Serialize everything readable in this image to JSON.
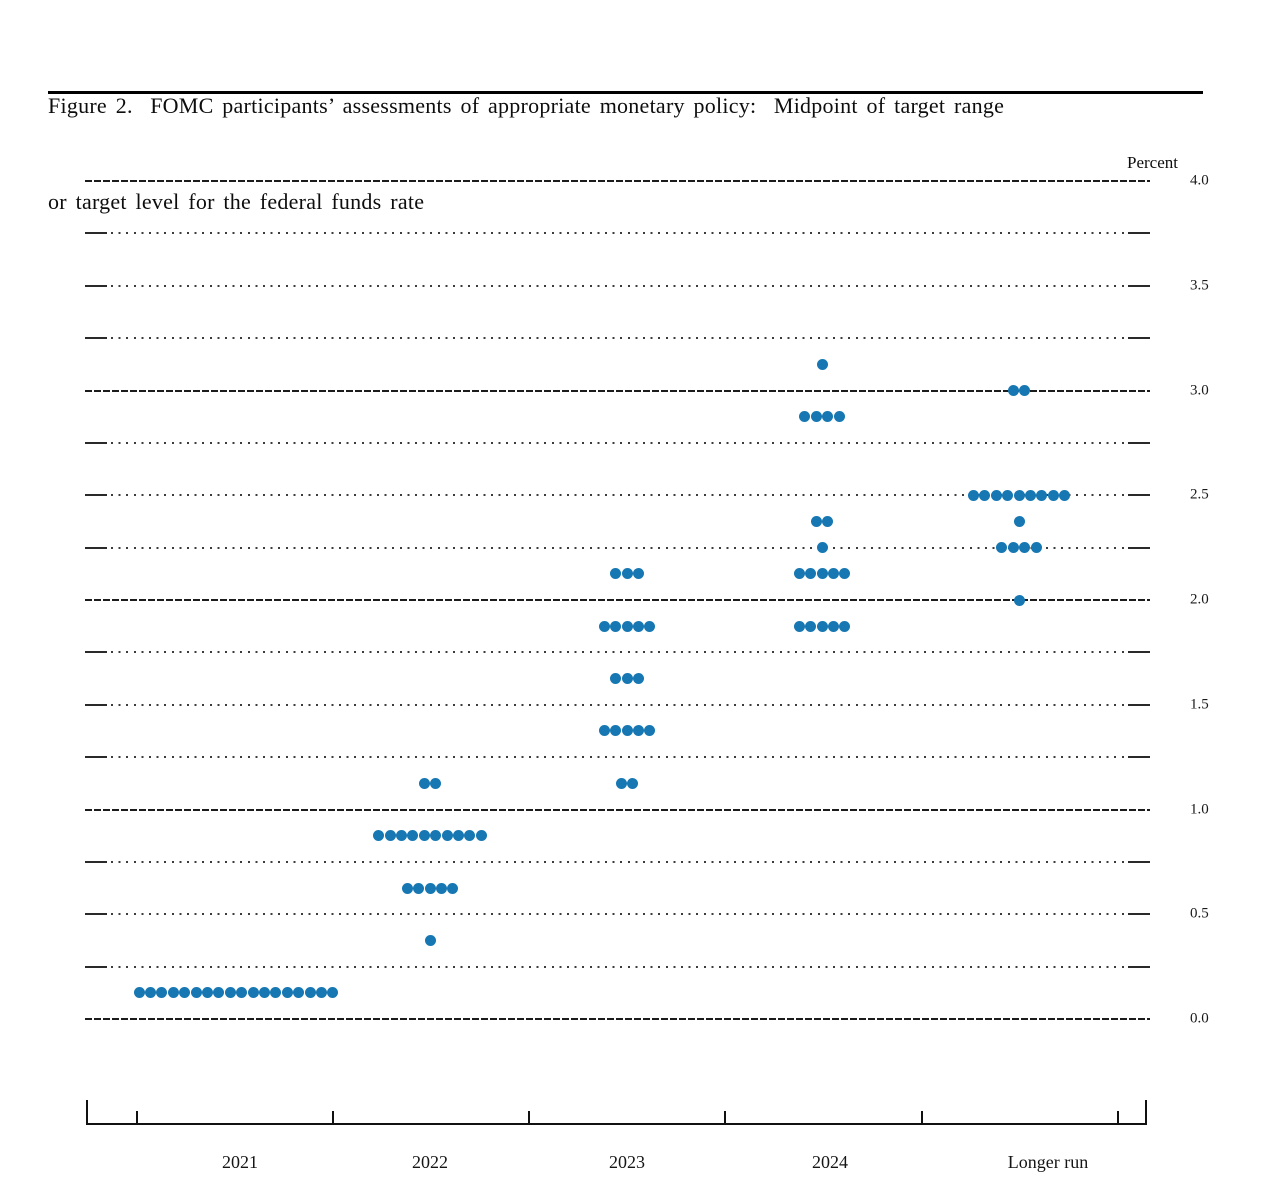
{
  "figure": {
    "title_line1": "Figure 2.  FOMC participants’ assessments of appropriate monetary policy:  Midpoint of target range",
    "title_line2": "or target level for the federal funds rate"
  },
  "chart_data": {
    "type": "scatter",
    "subtype": "fomc-dot-plot",
    "title": "FOMC participants’ assessments of appropriate monetary policy: Midpoint of target range or target level for the federal funds rate",
    "ylabel": "Percent",
    "ylim": [
      0.0,
      4.0
    ],
    "grid": "on",
    "grid_interval": 0.25,
    "solid_gridlines": [
      0.0,
      1.0,
      2.0,
      3.0,
      4.0
    ],
    "legend_position": "none",
    "y_ticks": [
      {
        "value": 4.0,
        "label": "4.0"
      },
      {
        "value": 3.5,
        "label": "3.5"
      },
      {
        "value": 3.0,
        "label": "3.0"
      },
      {
        "value": 2.5,
        "label": "2.5"
      },
      {
        "value": 2.0,
        "label": "2.0"
      },
      {
        "value": 1.5,
        "label": "1.5"
      },
      {
        "value": 1.0,
        "label": "1.0"
      },
      {
        "value": 0.5,
        "label": "0.5"
      },
      {
        "value": 0.0,
        "label": "0.0"
      }
    ],
    "categories": [
      "2021",
      "2022",
      "2023",
      "2024",
      "Longer run"
    ],
    "series": [
      {
        "category": "2021",
        "dots": [
          {
            "rate": 0.125,
            "count": 18
          }
        ]
      },
      {
        "category": "2022",
        "dots": [
          {
            "rate": 1.125,
            "count": 2
          },
          {
            "rate": 0.875,
            "count": 10
          },
          {
            "rate": 0.625,
            "count": 5
          },
          {
            "rate": 0.375,
            "count": 1
          }
        ]
      },
      {
        "category": "2023",
        "dots": [
          {
            "rate": 2.125,
            "count": 3
          },
          {
            "rate": 1.875,
            "count": 5
          },
          {
            "rate": 1.625,
            "count": 3
          },
          {
            "rate": 1.375,
            "count": 5
          },
          {
            "rate": 1.125,
            "count": 2
          }
        ]
      },
      {
        "category": "2024",
        "dots": [
          {
            "rate": 3.125,
            "count": 1
          },
          {
            "rate": 2.875,
            "count": 4
          },
          {
            "rate": 2.375,
            "count": 2
          },
          {
            "rate": 2.25,
            "count": 1
          },
          {
            "rate": 2.125,
            "count": 5
          },
          {
            "rate": 1.875,
            "count": 5
          }
        ]
      },
      {
        "category": "Longer run",
        "dots": [
          {
            "rate": 3.0,
            "count": 2
          },
          {
            "rate": 2.5,
            "count": 9
          },
          {
            "rate": 2.375,
            "count": 1
          },
          {
            "rate": 2.25,
            "count": 4
          },
          {
            "rate": 2.0,
            "count": 1
          }
        ]
      }
    ],
    "dot_color": "#1677b2"
  },
  "colors": {
    "dot": "#1677b2",
    "gridline": "#1c1c1c",
    "text": "#111111"
  }
}
